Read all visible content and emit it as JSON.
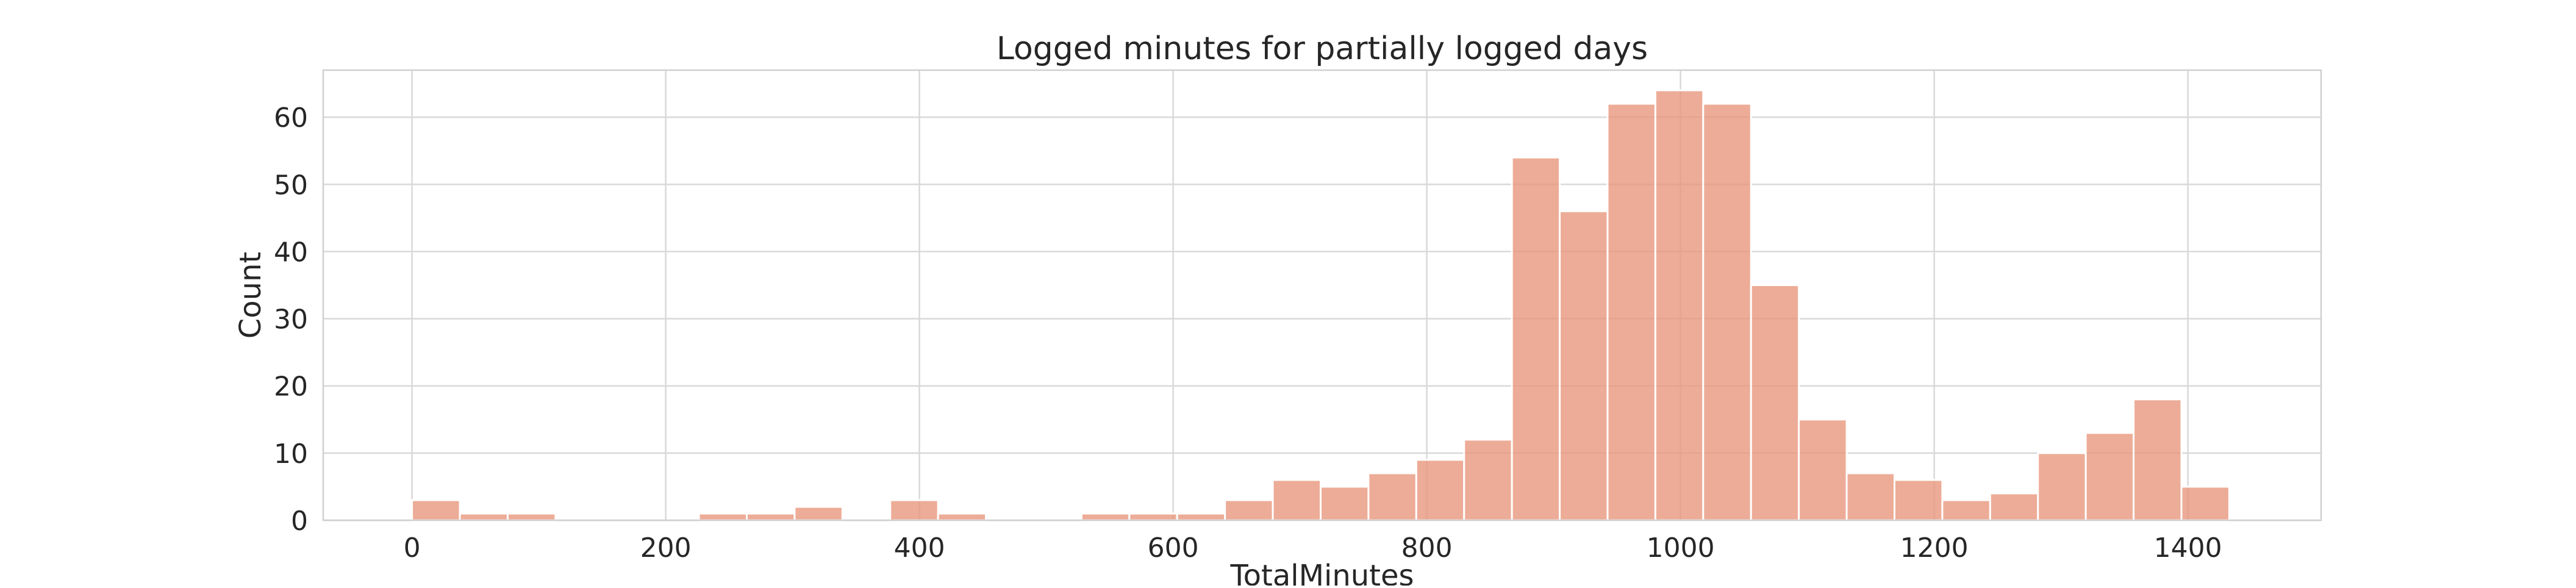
{
  "chart_data": {
    "type": "bar",
    "subtype": "histogram",
    "title": "Logged minutes for partially logged days",
    "xlabel": "TotalMinutes",
    "ylabel": "Count",
    "xlim": [
      -70,
      1505
    ],
    "ylim": [
      0,
      67
    ],
    "xticks": [
      0,
      200,
      400,
      600,
      800,
      1000,
      1200,
      1400
    ],
    "yticks": [
      0,
      10,
      20,
      30,
      40,
      50,
      60
    ],
    "grid": true,
    "legend": "none",
    "bar_color": "#e8957a",
    "bin_start": 0,
    "bin_width": 37.7,
    "values": [
      3,
      1,
      1,
      0,
      0,
      0,
      1,
      1,
      2,
      0,
      3,
      1,
      0,
      0,
      1,
      1,
      1,
      3,
      6,
      5,
      7,
      9,
      12,
      54,
      46,
      62,
      64,
      62,
      35,
      15,
      7,
      6,
      3,
      4,
      10,
      13,
      18,
      5
    ]
  }
}
